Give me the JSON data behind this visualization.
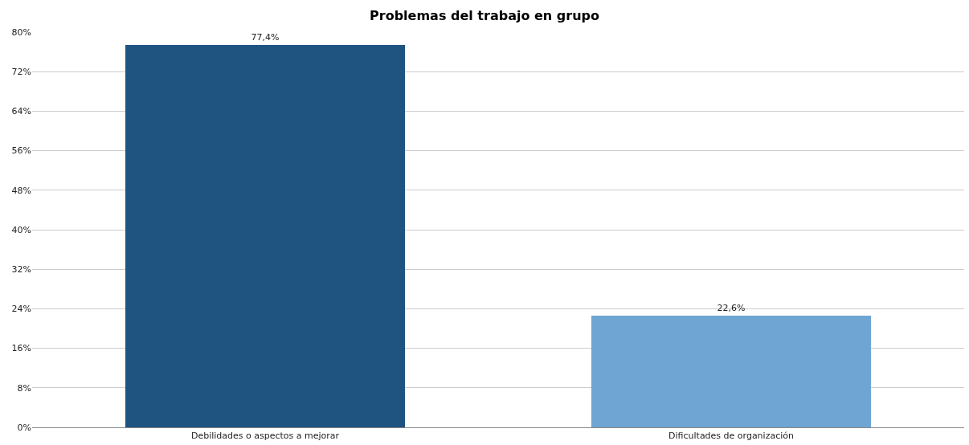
{
  "chart_data": {
    "type": "bar",
    "title": "Problemas del trabajo en grupo",
    "categories": [
      "Debilidades o aspectos a mejorar",
      "Dificultades de organización"
    ],
    "values": [
      77.4,
      22.6
    ],
    "colors": [
      "#1f5380",
      "#6fa5d2"
    ],
    "value_labels": [
      "77,4%",
      "22,6%"
    ],
    "ylim": [
      0,
      80
    ],
    "yticks": [
      {
        "value": 0,
        "label": "0%"
      },
      {
        "value": 8,
        "label": "8%"
      },
      {
        "value": 16,
        "label": "16%"
      },
      {
        "value": 24,
        "label": "24%"
      },
      {
        "value": 32,
        "label": "32%"
      },
      {
        "value": 40,
        "label": "40%"
      },
      {
        "value": 48,
        "label": "48%"
      },
      {
        "value": 56,
        "label": "56%"
      },
      {
        "value": 64,
        "label": "64%"
      },
      {
        "value": 72,
        "label": "72%"
      },
      {
        "value": 80,
        "label": "80%"
      }
    ],
    "grid": "y",
    "legend": false
  }
}
